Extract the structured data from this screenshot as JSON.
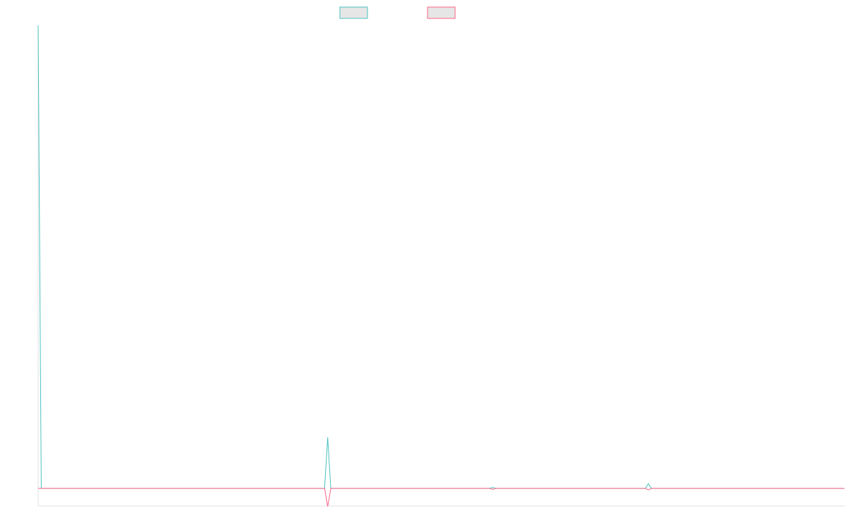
{
  "chart_data": {
    "type": "line",
    "x": [
      0,
      1,
      92,
      93,
      94,
      145,
      146,
      147,
      195,
      196,
      197,
      259
    ],
    "xlim": [
      0,
      259
    ],
    "ylim": [
      -3.8,
      100
    ],
    "series": [
      {
        "color": "#4bc0c0",
        "values": [
          100,
          0,
          0,
          11,
          0,
          0,
          0.2,
          0,
          0,
          1,
          0,
          0
        ]
      },
      {
        "color": "#ff6384",
        "values": [
          0,
          0,
          0,
          -3.9,
          0,
          0,
          -0.2,
          0,
          0,
          -0.3,
          0,
          0
        ]
      }
    ]
  }
}
